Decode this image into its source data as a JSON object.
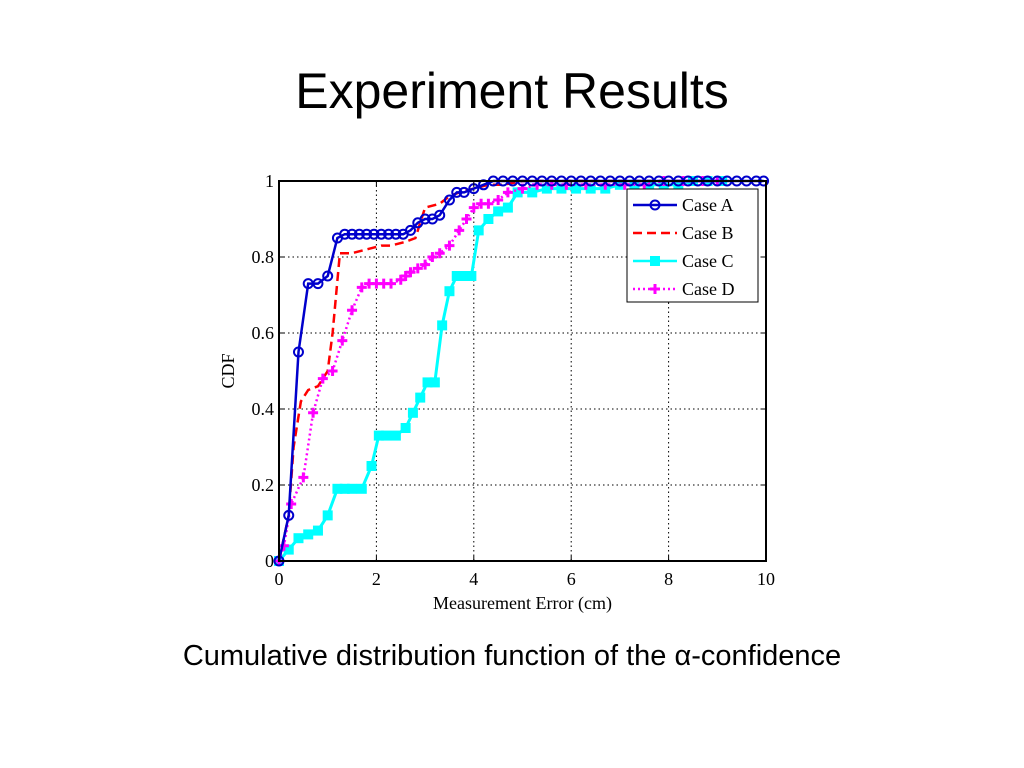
{
  "slide": {
    "title": "Experiment Results",
    "caption": "Cumulative distribution function of the α-confidence"
  },
  "chart_data": {
    "type": "line",
    "title": "",
    "xlabel": "Measurement Error (cm)",
    "ylabel": "CDF",
    "xlim": [
      0,
      10
    ],
    "ylim": [
      0,
      1
    ],
    "xticks": [
      "0",
      "2",
      "4",
      "6",
      "8",
      "10"
    ],
    "yticks": [
      "0",
      "0.2",
      "0.4",
      "0.6",
      "0.8",
      "1"
    ],
    "grid": true,
    "legend_position": "top-right",
    "series": [
      {
        "name": "Case A",
        "color": "#0000cc",
        "style": "solid",
        "marker": "circle",
        "x": [
          0,
          0.2,
          0.4,
          0.6,
          0.8,
          1.0,
          1.2,
          1.35,
          1.5,
          1.65,
          1.8,
          1.95,
          2.1,
          2.25,
          2.4,
          2.55,
          2.7,
          2.85,
          3.0,
          3.15,
          3.3,
          3.5,
          3.65,
          3.8,
          4.0,
          4.2,
          4.4,
          4.6,
          4.8,
          5.0,
          5.2,
          5.4,
          5.6,
          5.8,
          6.0,
          6.2,
          6.4,
          6.6,
          6.8,
          7.0,
          7.2,
          7.4,
          7.6,
          7.8,
          8.0,
          8.2,
          8.4,
          8.6,
          8.8,
          9.0,
          9.2,
          9.4,
          9.6,
          9.8,
          9.95
        ],
        "y": [
          0,
          0.12,
          0.55,
          0.73,
          0.73,
          0.75,
          0.85,
          0.86,
          0.86,
          0.86,
          0.86,
          0.86,
          0.86,
          0.86,
          0.86,
          0.86,
          0.87,
          0.89,
          0.9,
          0.9,
          0.91,
          0.95,
          0.97,
          0.97,
          0.98,
          0.99,
          1,
          1,
          1,
          1,
          1,
          1,
          1,
          1,
          1,
          1,
          1,
          1,
          1,
          1,
          1,
          1,
          1,
          1,
          1,
          1,
          1,
          1,
          1,
          1,
          1,
          1,
          1,
          1,
          1
        ]
      },
      {
        "name": "Case B",
        "color": "#ff0000",
        "style": "dashed",
        "marker": "none",
        "x": [
          0,
          0.2,
          0.3,
          0.45,
          0.6,
          0.8,
          1.0,
          1.1,
          1.25,
          1.5,
          1.8,
          2.1,
          2.3,
          2.6,
          2.8,
          3.0,
          3.3,
          3.5,
          3.7,
          4.0,
          4.3,
          4.6,
          5.0,
          6.0,
          8.0,
          9.0
        ],
        "y": [
          0,
          0.12,
          0.3,
          0.42,
          0.45,
          0.46,
          0.5,
          0.6,
          0.81,
          0.81,
          0.82,
          0.83,
          0.83,
          0.84,
          0.85,
          0.93,
          0.94,
          0.96,
          0.97,
          0.98,
          0.99,
          0.99,
          1,
          1,
          1,
          1
        ]
      },
      {
        "name": "Case C",
        "color": "#00ffff",
        "style": "solid",
        "marker": "square",
        "x": [
          0,
          0.2,
          0.4,
          0.6,
          0.8,
          1.0,
          1.2,
          1.35,
          1.5,
          1.7,
          1.9,
          2.05,
          2.2,
          2.4,
          2.6,
          2.75,
          2.9,
          3.05,
          3.2,
          3.35,
          3.5,
          3.65,
          3.8,
          3.95,
          4.1,
          4.3,
          4.5,
          4.7,
          4.9,
          5.2,
          5.5,
          5.8,
          6.1,
          6.4,
          6.7,
          7.0,
          7.3,
          7.6,
          7.9,
          8.2,
          8.5,
          8.8,
          9.1
        ],
        "y": [
          0,
          0.03,
          0.06,
          0.07,
          0.08,
          0.12,
          0.19,
          0.19,
          0.19,
          0.19,
          0.25,
          0.33,
          0.33,
          0.33,
          0.35,
          0.39,
          0.43,
          0.47,
          0.47,
          0.62,
          0.71,
          0.75,
          0.75,
          0.75,
          0.87,
          0.9,
          0.92,
          0.93,
          0.97,
          0.97,
          0.98,
          0.98,
          0.98,
          0.98,
          0.98,
          0.99,
          0.99,
          0.99,
          0.99,
          0.99,
          1,
          1,
          1
        ]
      },
      {
        "name": "Case D",
        "color": "#ff00ff",
        "style": "dotted",
        "marker": "plus",
        "x": [
          0,
          0.1,
          0.25,
          0.5,
          0.7,
          0.9,
          1.1,
          1.3,
          1.5,
          1.7,
          1.85,
          2.0,
          2.15,
          2.3,
          2.5,
          2.6,
          2.7,
          2.85,
          3.0,
          3.15,
          3.3,
          3.5,
          3.7,
          3.85,
          4.0,
          4.15,
          4.3,
          4.5,
          4.7,
          5.0,
          5.3,
          5.6,
          5.9,
          6.3,
          6.7,
          7.1,
          7.5,
          7.9,
          8.3,
          8.7,
          9.0
        ],
        "y": [
          0,
          0.04,
          0.15,
          0.22,
          0.39,
          0.48,
          0.5,
          0.58,
          0.66,
          0.72,
          0.73,
          0.73,
          0.73,
          0.73,
          0.74,
          0.75,
          0.76,
          0.77,
          0.78,
          0.8,
          0.81,
          0.83,
          0.87,
          0.9,
          0.93,
          0.94,
          0.94,
          0.95,
          0.97,
          0.98,
          0.99,
          0.99,
          0.99,
          0.99,
          0.99,
          0.99,
          0.99,
          1,
          1,
          1,
          1
        ]
      }
    ]
  }
}
